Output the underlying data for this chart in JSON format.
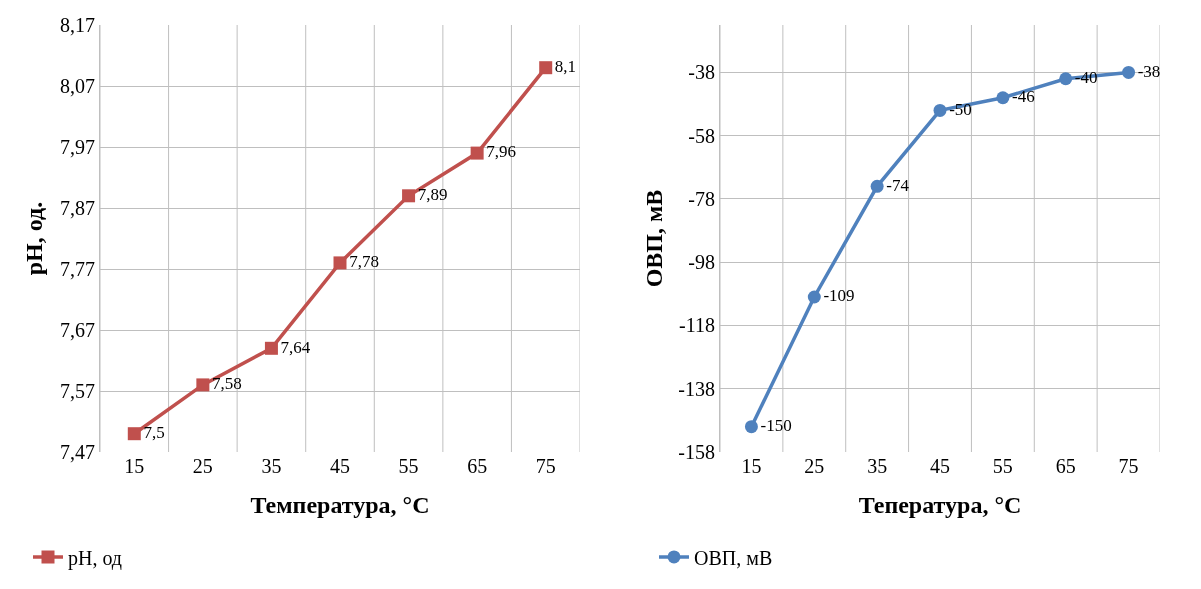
{
  "chart_data": [
    {
      "type": "line",
      "xlabel": "Температура, °C",
      "ylabel": "pH, од.",
      "categories": [
        "15",
        "25",
        "35",
        "45",
        "55",
        "65",
        "75"
      ],
      "series": [
        {
          "name": "pH, од",
          "color": "#c0504d",
          "values": [
            7.5,
            7.58,
            7.64,
            7.78,
            7.89,
            7.96,
            8.1
          ],
          "value_labels": [
            "7,5",
            "7,58",
            "7,64",
            "7,78",
            "7,89",
            "7,96",
            "8,1"
          ]
        }
      ],
      "ylim": [
        7.47,
        8.17
      ],
      "yticks": [
        {
          "value": 7.47,
          "label": "7,47"
        },
        {
          "value": 7.57,
          "label": "7,57"
        },
        {
          "value": 7.67,
          "label": "7,67"
        },
        {
          "value": 7.77,
          "label": "7,77"
        },
        {
          "value": 7.87,
          "label": "7,87"
        },
        {
          "value": 7.97,
          "label": "7,97"
        },
        {
          "value": 8.07,
          "label": "8,07"
        },
        {
          "value": 8.17,
          "label": "8,17"
        }
      ],
      "grid": true,
      "legend": "bottom left",
      "marker": "square",
      "line_style": "solid"
    },
    {
      "type": "line",
      "xlabel": "Тепература, °C",
      "ylabel": "ОВП, мВ",
      "categories": [
        "15",
        "25",
        "35",
        "45",
        "55",
        "65",
        "75"
      ],
      "series": [
        {
          "name": "ОВП, мВ",
          "color": "#4f81bd",
          "values": [
            -150,
            -109,
            -74,
            -50,
            -46,
            -40,
            -38
          ]
        }
      ],
      "ylim": [
        -158,
        -23
      ],
      "yticks": [
        -158,
        -138,
        -118,
        -98,
        -78,
        -58,
        -38
      ],
      "grid": true,
      "legend": "bottom left",
      "marker": "circle",
      "line_style": "solid",
      "data_labels": true
    }
  ]
}
